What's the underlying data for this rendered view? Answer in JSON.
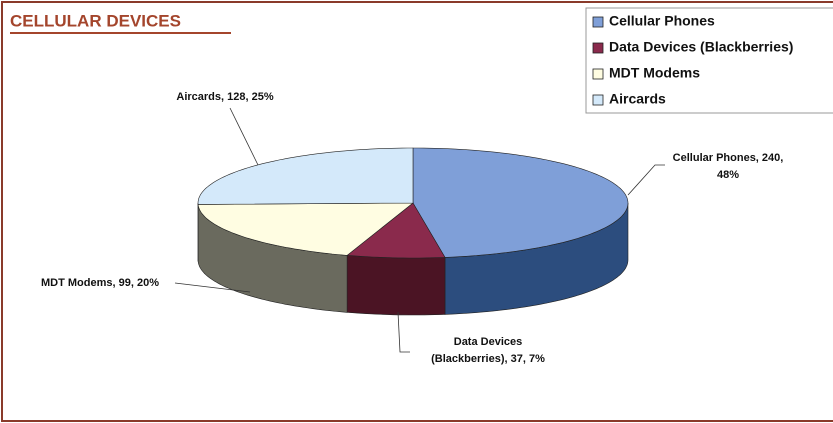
{
  "chart_data": {
    "type": "pie",
    "title": "CELLULAR DEVICES",
    "categories": [
      "Cellular Phones",
      "Data Devices (Blackberries)",
      "MDT Modems",
      "Aircards"
    ],
    "values": [
      240,
      37,
      99,
      128
    ],
    "value_labels": [
      [
        "Cellular Phones, 240,",
        "48%"
      ],
      [
        "Data Devices",
        "(Blackberries), 37, 7%"
      ],
      [
        "MDT Modems, 99, 20%"
      ],
      [
        "Aircards, 128, 25%"
      ]
    ],
    "colors": [
      "#7f9fd8",
      "#8a2a4c",
      "#fffde2",
      "#d4e9fa"
    ],
    "side_colors": [
      "#2c4d7e",
      "#4b1424",
      "#6a6a5e",
      "#8aa0b4"
    ],
    "legend": "top-right",
    "three_d": true
  }
}
